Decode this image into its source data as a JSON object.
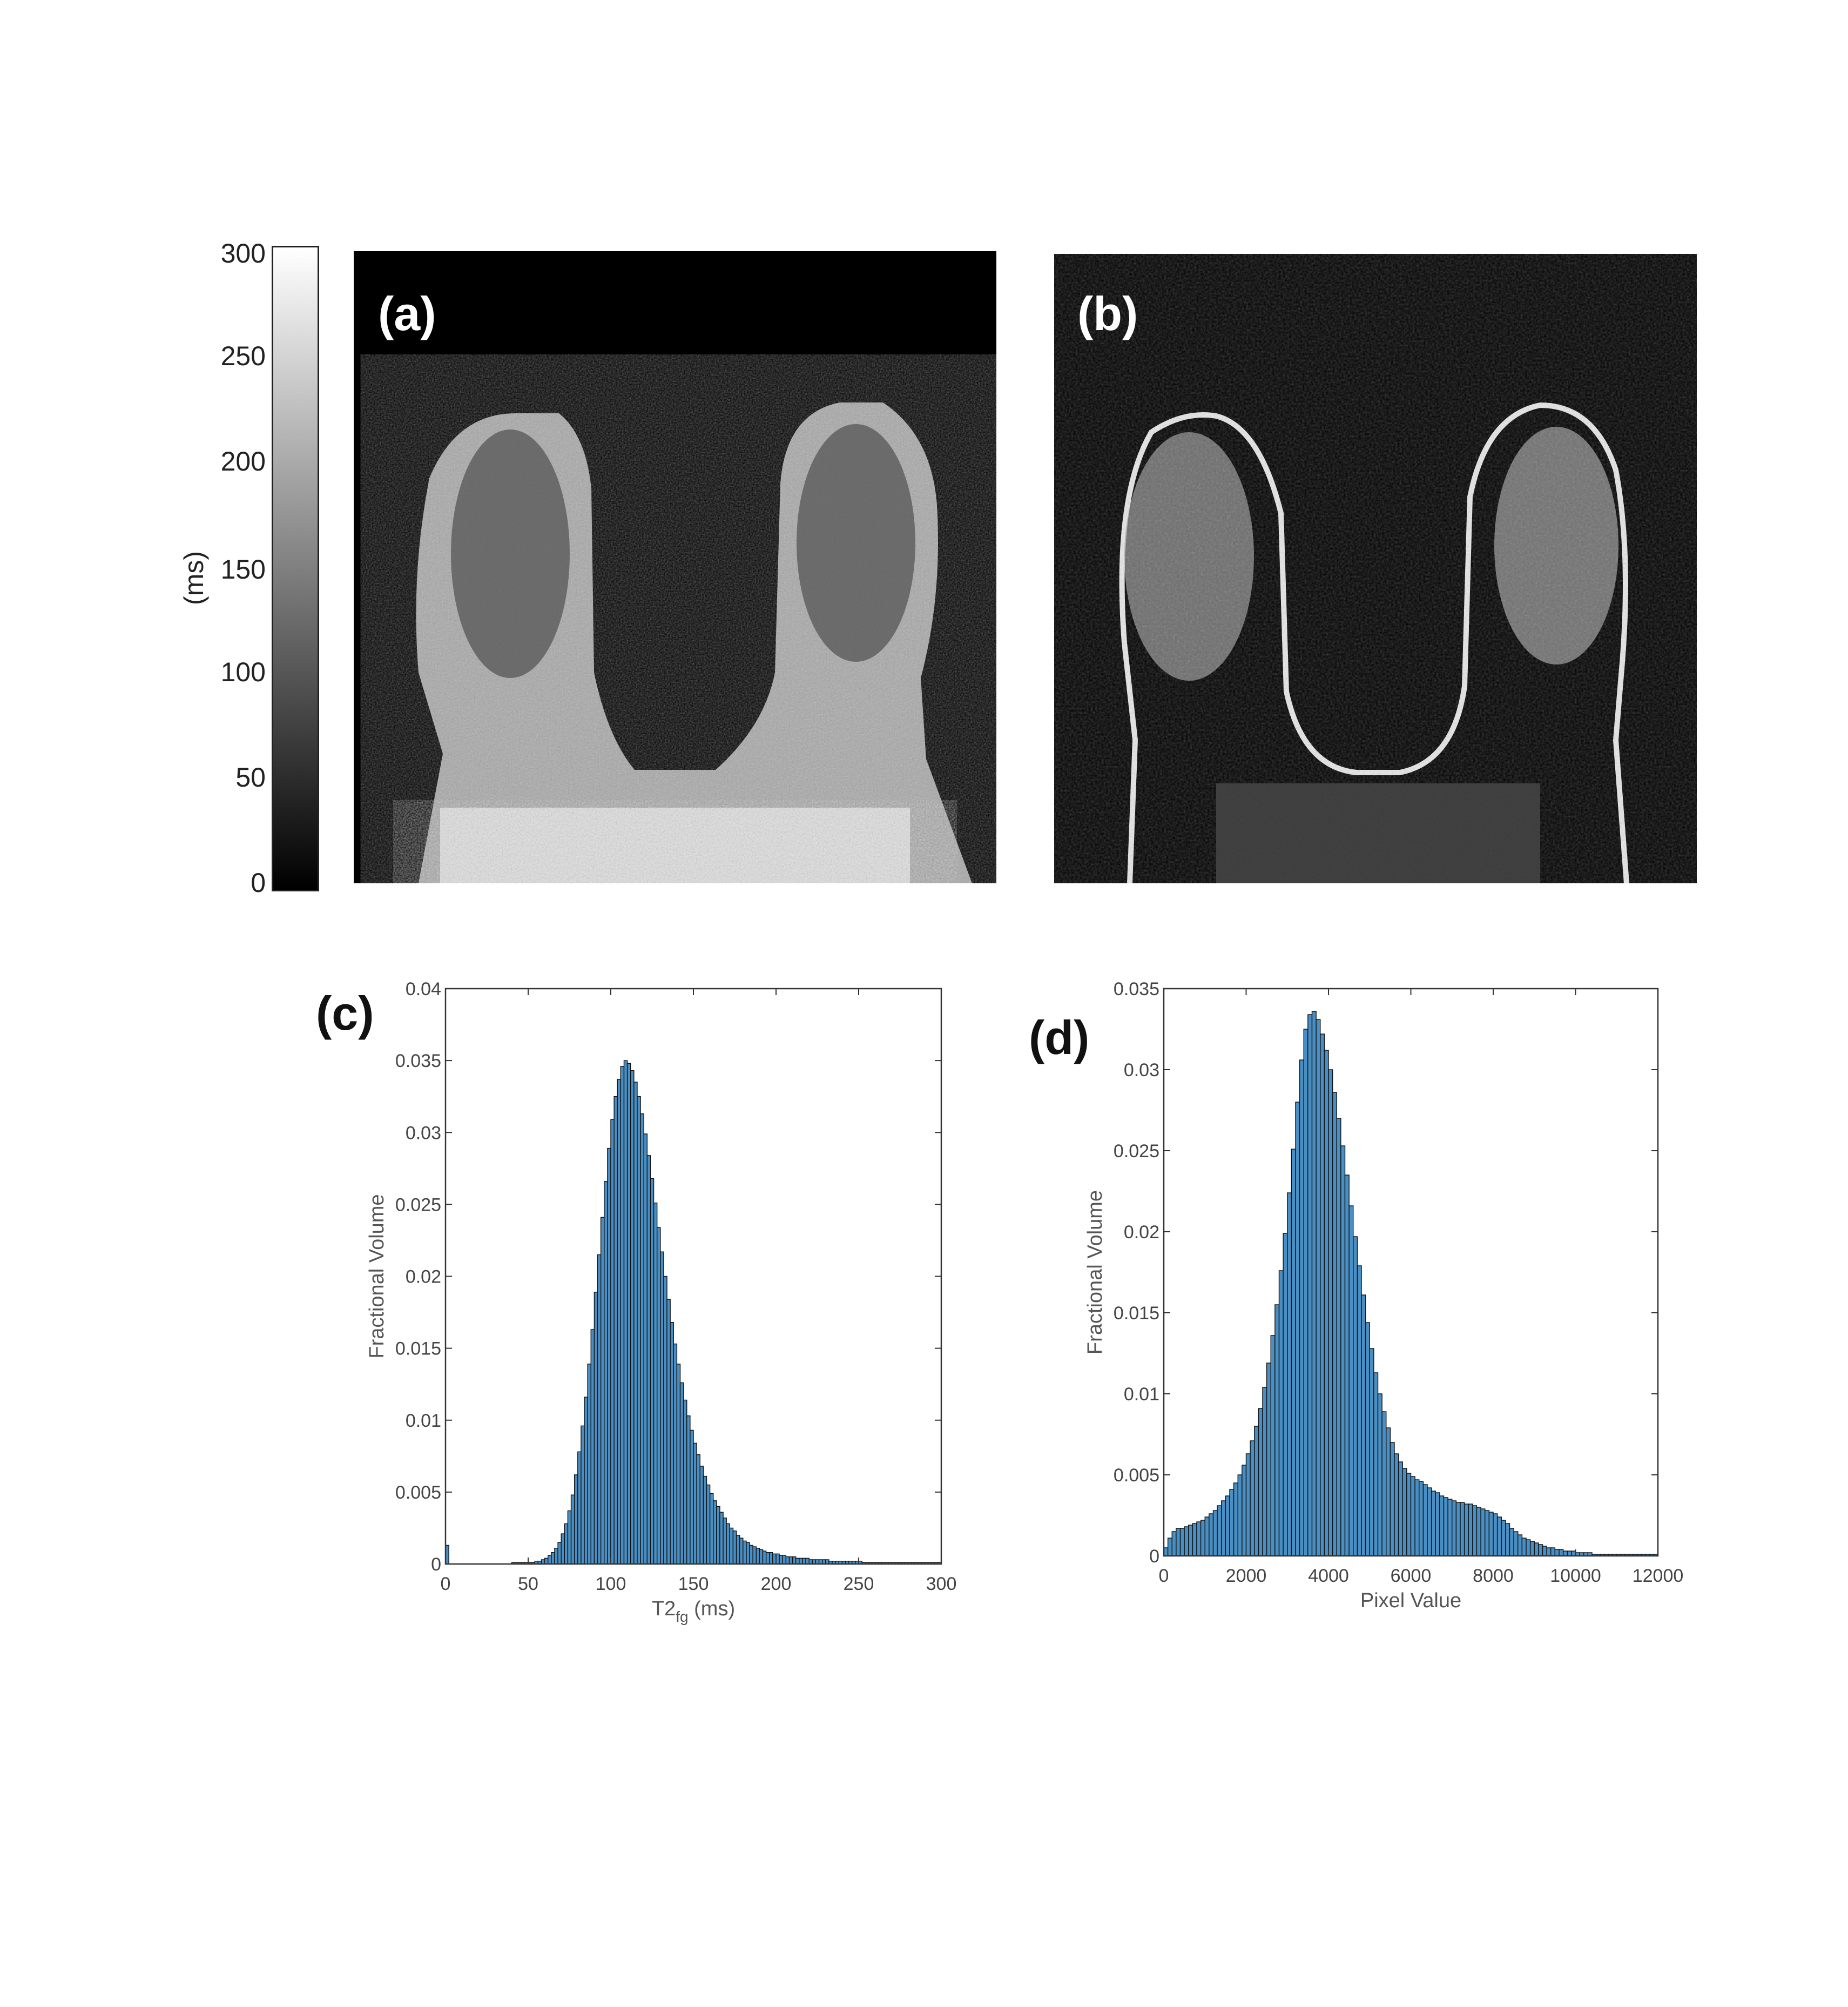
{
  "panels": {
    "a": "(a)",
    "b": "(b)",
    "c": "(c)",
    "d": "(d)"
  },
  "colorbar": {
    "label": "(ms)",
    "ticks": [
      "0",
      "50",
      "100",
      "150",
      "200",
      "250",
      "300"
    ],
    "range": [
      0,
      300
    ],
    "colormap": "gray"
  },
  "colors": {
    "bar_fill": "#4a8fc3",
    "bar_edge": "#111111",
    "image_bg": "#000000"
  },
  "chart_data": [
    {
      "panel": "(c)",
      "type": "bar",
      "xlabel": "T2",
      "xlabel_sub": "fg",
      "xlabel_unit": "(ms)",
      "ylabel": "Fractional Volume",
      "xlim": [
        0,
        300
      ],
      "ylim": [
        0,
        0.04
      ],
      "xticks": [
        "0",
        "50",
        "100",
        "150",
        "200",
        "250",
        "300"
      ],
      "yticks": [
        "0",
        "0.005",
        "0.01",
        "0.015",
        "0.02",
        "0.025",
        "0.03",
        "0.035",
        "0.04"
      ],
      "grid": false,
      "bin_width": 2,
      "x": [
        0,
        2,
        4,
        6,
        8,
        10,
        12,
        14,
        16,
        18,
        20,
        22,
        24,
        26,
        28,
        30,
        32,
        34,
        36,
        38,
        40,
        42,
        44,
        46,
        48,
        50,
        52,
        54,
        56,
        58,
        60,
        62,
        64,
        66,
        68,
        70,
        72,
        74,
        76,
        78,
        80,
        82,
        84,
        86,
        88,
        90,
        92,
        94,
        96,
        98,
        100,
        102,
        104,
        106,
        108,
        110,
        112,
        114,
        116,
        118,
        120,
        122,
        124,
        126,
        128,
        130,
        132,
        134,
        136,
        138,
        140,
        142,
        144,
        146,
        148,
        150,
        152,
        154,
        156,
        158,
        160,
        162,
        164,
        166,
        168,
        170,
        172,
        174,
        176,
        178,
        180,
        182,
        184,
        186,
        188,
        190,
        192,
        194,
        196,
        198,
        200,
        202,
        204,
        206,
        208,
        210,
        212,
        214,
        216,
        218,
        220,
        222,
        224,
        226,
        228,
        230,
        232,
        234,
        236,
        238,
        240,
        242,
        244,
        246,
        248,
        250,
        252,
        254,
        256,
        258,
        260,
        262,
        264,
        266,
        268,
        270,
        272,
        274,
        276,
        278,
        280,
        282,
        284,
        286,
        288,
        290,
        292,
        294,
        296,
        298
      ],
      "values": [
        0.0013,
        0,
        0,
        0,
        0,
        0,
        0,
        0,
        0,
        0,
        0,
        0,
        0,
        0,
        0,
        0,
        0,
        0,
        0,
        0,
        0.0001,
        0.0001,
        0.0001,
        0.0001,
        0.0001,
        0.0001,
        0.0001,
        0.0002,
        0.0002,
        0.0003,
        0.0004,
        0.0006,
        0.0008,
        0.0011,
        0.0015,
        0.0021,
        0.0028,
        0.0037,
        0.0048,
        0.0062,
        0.0078,
        0.0096,
        0.0116,
        0.0139,
        0.0163,
        0.0189,
        0.0215,
        0.0241,
        0.0266,
        0.0289,
        0.0309,
        0.0325,
        0.0337,
        0.0346,
        0.035,
        0.0348,
        0.0343,
        0.0335,
        0.0325,
        0.0313,
        0.0299,
        0.0284,
        0.0268,
        0.0251,
        0.0234,
        0.0217,
        0.02,
        0.0184,
        0.0168,
        0.0153,
        0.0139,
        0.0126,
        0.0114,
        0.0103,
        0.0093,
        0.0084,
        0.0076,
        0.0068,
        0.0061,
        0.0055,
        0.0049,
        0.0044,
        0.004,
        0.0036,
        0.0032,
        0.0028,
        0.0025,
        0.0023,
        0.002,
        0.0018,
        0.0016,
        0.0015,
        0.0013,
        0.0012,
        0.0011,
        0.001,
        0.0009,
        0.0008,
        0.0008,
        0.0007,
        0.0007,
        0.0006,
        0.0006,
        0.0005,
        0.0005,
        0.0005,
        0.0004,
        0.0004,
        0.0004,
        0.0004,
        0.0003,
        0.0003,
        0.0003,
        0.0003,
        0.0003,
        0.0003,
        0.0002,
        0.0002,
        0.0002,
        0.0002,
        0.0002,
        0.0002,
        0.0002,
        0.0002,
        0.0002,
        0.0002,
        0.0001,
        0.0001,
        0.0001,
        0.0001,
        0.0001,
        0.0001,
        0.0001,
        0.0001,
        0.0001,
        0.0001,
        0.0001,
        0.0001,
        0.0001,
        0.0001,
        0.0001,
        0.0001,
        0.0001,
        0.0001,
        0.0001,
        0.0001,
        0.0001,
        0.0001,
        0.0001,
        0.0001
      ]
    },
    {
      "panel": "(d)",
      "type": "bar",
      "xlabel": "Pixel Value",
      "ylabel": "Fractional Volume",
      "xlim": [
        0,
        12000
      ],
      "ylim": [
        0,
        0.035
      ],
      "xticks": [
        "0",
        "2000",
        "4000",
        "6000",
        "8000",
        "10000",
        "12000"
      ],
      "yticks": [
        "0",
        "0.005",
        "0.01",
        "0.015",
        "0.02",
        "0.025",
        "0.03",
        "0.035"
      ],
      "grid": false,
      "bin_width": 100,
      "x": [
        0,
        100,
        200,
        300,
        400,
        500,
        600,
        700,
        800,
        900,
        1000,
        1100,
        1200,
        1300,
        1400,
        1500,
        1600,
        1700,
        1800,
        1900,
        2000,
        2100,
        2200,
        2300,
        2400,
        2500,
        2600,
        2700,
        2800,
        2900,
        3000,
        3100,
        3200,
        3300,
        3400,
        3500,
        3600,
        3700,
        3800,
        3900,
        4000,
        4100,
        4200,
        4300,
        4400,
        4500,
        4600,
        4700,
        4800,
        4900,
        5000,
        5100,
        5200,
        5300,
        5400,
        5500,
        5600,
        5700,
        5800,
        5900,
        6000,
        6100,
        6200,
        6300,
        6400,
        6500,
        6600,
        6700,
        6800,
        6900,
        7000,
        7100,
        7200,
        7300,
        7400,
        7500,
        7600,
        7700,
        7800,
        7900,
        8000,
        8100,
        8200,
        8300,
        8400,
        8500,
        8600,
        8700,
        8800,
        8900,
        9000,
        9100,
        9200,
        9300,
        9400,
        9500,
        9600,
        9700,
        9800,
        9900,
        10000,
        10100,
        10200,
        10300,
        10400,
        10500,
        10600,
        10700,
        10800,
        10900,
        11000,
        11100,
        11200,
        11300,
        11400,
        11500,
        11600,
        11700,
        11800,
        11900
      ],
      "values": [
        0.0005,
        0.0011,
        0.0015,
        0.0017,
        0.0017,
        0.0018,
        0.0019,
        0.002,
        0.0021,
        0.0022,
        0.0024,
        0.0026,
        0.0028,
        0.0031,
        0.0034,
        0.0037,
        0.0041,
        0.0045,
        0.005,
        0.0056,
        0.0063,
        0.0071,
        0.008,
        0.0091,
        0.0104,
        0.0119,
        0.0136,
        0.0155,
        0.0176,
        0.0199,
        0.0224,
        0.0251,
        0.028,
        0.0306,
        0.0325,
        0.0334,
        0.0336,
        0.0331,
        0.0322,
        0.0312,
        0.03,
        0.0286,
        0.027,
        0.0253,
        0.0235,
        0.0216,
        0.0197,
        0.0179,
        0.0161,
        0.0144,
        0.0128,
        0.0113,
        0.01,
        0.0089,
        0.0079,
        0.007,
        0.0063,
        0.0058,
        0.0054,
        0.0051,
        0.0049,
        0.0047,
        0.0046,
        0.0044,
        0.0042,
        0.004,
        0.0039,
        0.0037,
        0.0036,
        0.0035,
        0.0034,
        0.0033,
        0.0033,
        0.0032,
        0.0032,
        0.0031,
        0.003,
        0.0029,
        0.0028,
        0.0027,
        0.0026,
        0.0024,
        0.0022,
        0.002,
        0.0017,
        0.0015,
        0.0013,
        0.0011,
        0.001,
        0.0009,
        0.0008,
        0.0007,
        0.0006,
        0.0005,
        0.0005,
        0.0004,
        0.0004,
        0.0003,
        0.0003,
        0.0003,
        0.0002,
        0.0002,
        0.0002,
        0.0002,
        0.0001,
        0.0001,
        0.0001,
        0.0001,
        0.0001,
        0.0001,
        0.0001,
        0.0001,
        0.0001,
        0.0001,
        0.0001,
        0.0001,
        0.0001,
        0.0001,
        0.0001,
        0.0001
      ]
    }
  ]
}
